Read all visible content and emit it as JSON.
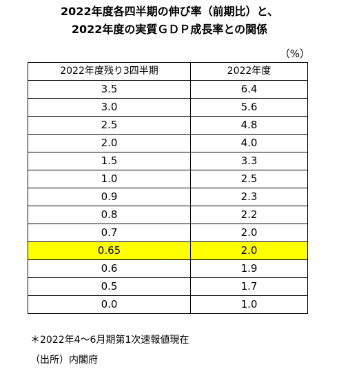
{
  "title": {
    "line1": "2022年度各四半期の伸び率（前期比）と、",
    "line2": "2022年度の実質ＧＤＰ成長率との関係"
  },
  "unit": "（%）",
  "table": {
    "headers": [
      "2022年度残り3四半期",
      "2022年度"
    ],
    "rows": [
      [
        "3.5",
        "6.4"
      ],
      [
        "3.0",
        "5.6"
      ],
      [
        "2.5",
        "4.8"
      ],
      [
        "2.0",
        "4.0"
      ],
      [
        "1.5",
        "3.3"
      ],
      [
        "1.0",
        "2.5"
      ],
      [
        "0.9",
        "2.3"
      ],
      [
        "0.8",
        "2.2"
      ],
      [
        "0.7",
        "2.0"
      ],
      [
        "0.65",
        "2.0"
      ],
      [
        "0.6",
        "1.9"
      ],
      [
        "0.5",
        "1.7"
      ],
      [
        "0.0",
        "1.0"
      ]
    ],
    "highlight_row": 9,
    "highlight_color": "#ffff00"
  },
  "notes": {
    "footnote": "＊2022年4～6月期第1次速報値現在",
    "source": "（出所）内閣府"
  }
}
